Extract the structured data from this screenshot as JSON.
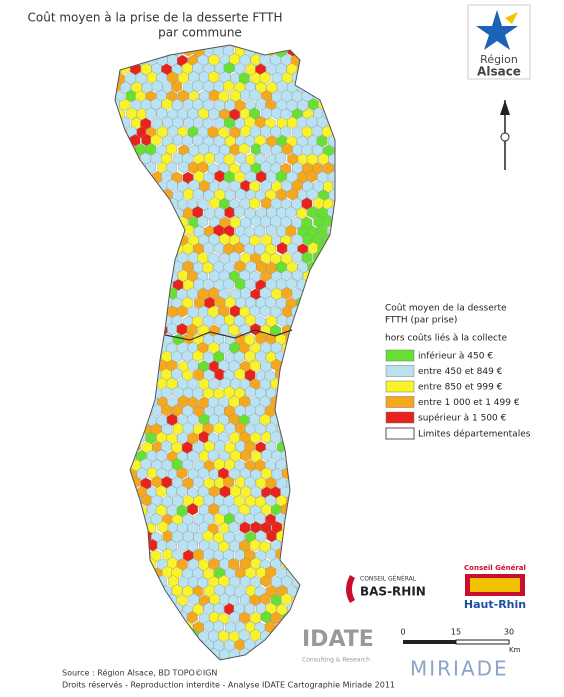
{
  "header": {
    "title": "Coût moyen à la prise de la desserte FTTH",
    "subtitle": "par commune"
  },
  "logo_region": {
    "line1": "Région",
    "line2": "Alsace"
  },
  "legend": {
    "title_line1": "Coût moyen de la desserte",
    "title_line2": "FTTH (par prise)",
    "subtitle": "hors coûts liés à la collecte",
    "items": [
      {
        "label": "inférieur à 450 €",
        "color": "#66e033"
      },
      {
        "label": "entre 450 et 849 €",
        "color": "#b9e3f3"
      },
      {
        "label": "entre 850 et 999 €",
        "color": "#f8f32b"
      },
      {
        "label": "entre 1 000 et 1 499 €",
        "color": "#f5a81c"
      },
      {
        "label": "supérieur à 1 500 €",
        "color": "#e8231b"
      }
    ],
    "boundary_label": "Limites départementales"
  },
  "logo_bas_rhin": {
    "line1": "CONSEIL GÉNÉRAL",
    "line2": "BAS-RHIN"
  },
  "logo_haut_rhin": {
    "line1": "Conseil Général",
    "line2": "Haut-Rhin"
  },
  "logo_idate": {
    "name": "IDATE",
    "tagline": "Consulting & Research"
  },
  "scale_bar": {
    "labels": [
      "0",
      "15",
      "30"
    ],
    "unit": "Km"
  },
  "logo_miriade": "MIRIADE",
  "footer": {
    "source": "Source : Région Alsace, BD TOPO©IGN",
    "rights": "Droits réservés - Reproduction interdite - Analyse IDATE Cartographie Miriade 2011"
  }
}
